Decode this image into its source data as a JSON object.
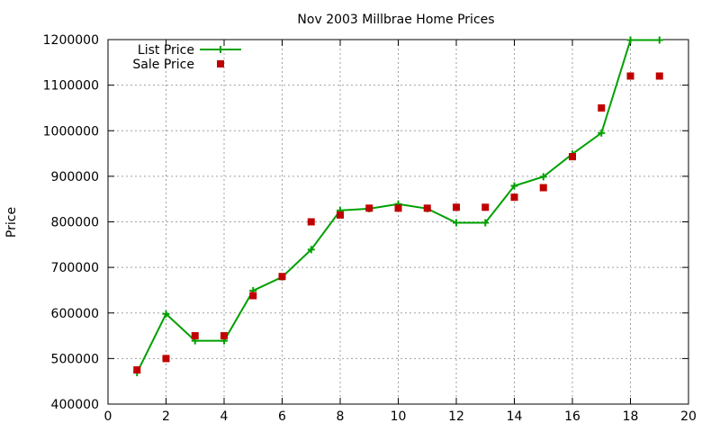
{
  "chart_data": {
    "type": "line",
    "title": "Nov 2003 Millbrae Home Prices",
    "xlabel": "",
    "ylabel": "Price",
    "xlim": [
      0,
      20
    ],
    "ylim": [
      400000,
      1200000
    ],
    "x_ticks": [
      "0",
      "2",
      "4",
      "6",
      "8",
      "10",
      "12",
      "14",
      "16",
      "18",
      "20"
    ],
    "y_ticks": [
      "400000",
      "500000",
      "600000",
      "700000",
      "800000",
      "900000",
      "1000000",
      "1100000",
      "1200000"
    ],
    "grid": true,
    "legend_position": "top-left",
    "series": [
      {
        "name": "List Price",
        "style": "line-with-plus-markers",
        "color": "#00a000",
        "x": [
          1,
          2,
          3,
          4,
          5,
          6,
          7,
          8,
          9,
          10,
          11,
          12,
          13,
          14,
          15,
          16,
          17,
          18,
          19
        ],
        "y": [
          469000,
          598000,
          539000,
          539000,
          649000,
          679000,
          739000,
          825000,
          829000,
          839000,
          829000,
          798000,
          798000,
          879000,
          899000,
          949000,
          995000,
          1199000,
          1199000
        ]
      },
      {
        "name": "Sale Price",
        "style": "square-markers",
        "color": "#c00000",
        "x": [
          1,
          2,
          3,
          4,
          5,
          6,
          7,
          8,
          9,
          10,
          11,
          12,
          13,
          14,
          15,
          16,
          17,
          18,
          19
        ],
        "y": [
          475000,
          500000,
          550000,
          550000,
          638000,
          680000,
          800000,
          815000,
          830000,
          830000,
          830000,
          832000,
          832000,
          854000,
          875000,
          943000,
          1050000,
          1120000,
          1120000
        ]
      }
    ]
  }
}
